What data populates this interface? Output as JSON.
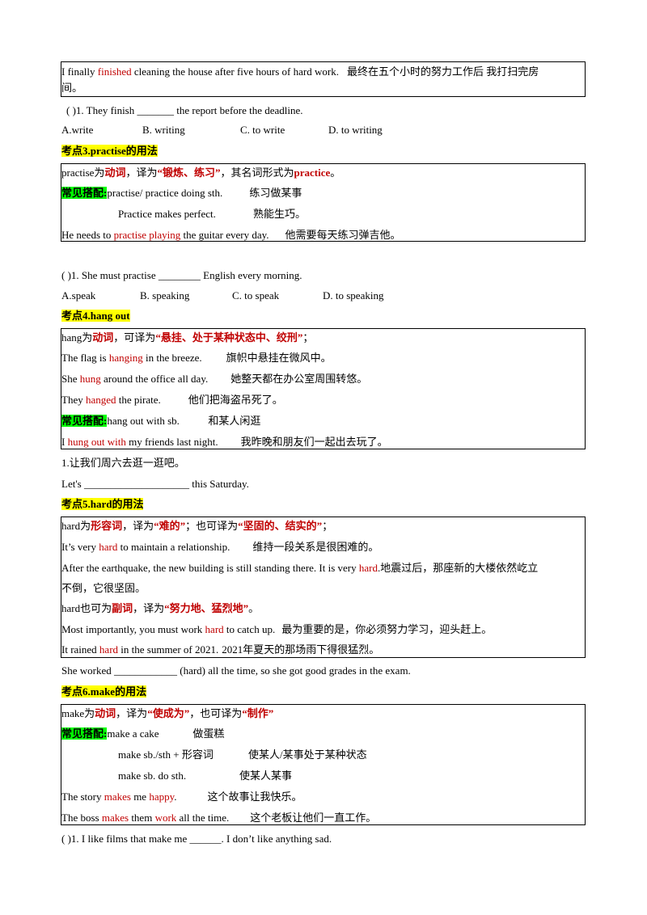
{
  "box1": {
    "line1_a": "I finally ",
    "line1_red": "finished",
    "line1_b": " cleaning the house after five hours of hard work.",
    "line1_cn": "最终在五个小时的努力工作后 我打扫完房",
    "line2_cn": "间。"
  },
  "q1": {
    "text_a": "(    )1. They finish ",
    "blank": "_______",
    "text_b": " the report before the deadline.",
    "options": [
      "A.write",
      "B. writing",
      "C. to write",
      "D. to writing"
    ]
  },
  "s3": {
    "heading": "考点3.practise的用法",
    "l1_a": "practise为",
    "l1_b": "动词",
    "l1_c": "，译为",
    "l1_d": "“锻炼、练习”",
    "l1_e": "，其名词形式为",
    "l1_f": "practice",
    "l1_g": "。",
    "l2_label": "常见搭配:",
    "l2_a": " practise/ practice doing sth.",
    "l2_cn": "练习做某事",
    "l3_a": "Practice makes perfect.",
    "l3_cn": "熟能生巧。",
    "l4_a": "He needs to ",
    "l4_red": "practise playing",
    "l4_b": " the guitar every day.",
    "l4_cn": "他需要每天练习弹吉他。"
  },
  "q2": {
    "text_a": "(     )1. She must practise ",
    "blank": "________",
    "text_b": " English every morning.",
    "options": [
      "A.speak",
      "B. speaking",
      "C. to speak",
      "D. to speaking"
    ]
  },
  "s4": {
    "heading": "考点4.hang out",
    "l1_a": "hang为",
    "l1_b": "动词",
    "l1_c": "，可译为",
    "l1_d": "“悬挂、处于某种状态中、绞刑”",
    "l1_e": "；",
    "l2_a": "The flag is ",
    "l2_red": "hanging",
    "l2_b": " in the breeze.",
    "l2_cn": "旗帜中悬挂在微风中。",
    "l3_a": "She ",
    "l3_red": "hung",
    "l3_b": " around the office all day.",
    "l3_cn": "她整天都在办公室周围转悠。",
    "l4_a": "They ",
    "l4_red": "hanged",
    "l4_b": " the pirate.",
    "l4_cn": "他们把海盗吊死了。",
    "l5_label": "常见搭配:",
    "l5_a": " hang out with sb.",
    "l5_cn": "和某人闲逛",
    "l6_a": "I ",
    "l6_red": "hung out with",
    "l6_b": " my friends last night.",
    "l6_cn": "我昨晚和朋友们一起出去玩了。",
    "ex_q": "1.让我们周六去逛一逛吧。",
    "ex_a": "Let's ",
    "ex_blank": "____________________",
    "ex_b": " this Saturday."
  },
  "s5": {
    "heading": "考点5.hard的用法",
    "l1_a": "hard为",
    "l1_b": "形容词",
    "l1_c": "，译为",
    "l1_d": "“难的”",
    "l1_e": "；也可译为",
    "l1_f": "“坚固的、结实的”",
    "l1_g": "；",
    "l2_a": "It’s very ",
    "l2_red": "hard",
    "l2_b": " to maintain a relationship.",
    "l2_cn": "维持一段关系是很困难的。",
    "l3_a": "After the earthquake, the new building is still standing there. It is very ",
    "l3_red": "hard",
    "l3_cn": ".地震过后，那座新的大楼依然屹立",
    "l4_cn": "不倒，它很坚固。",
    "l5_a": "hard也可为",
    "l5_b": "副词",
    "l5_c": "，译为",
    "l5_d": "“努力地、猛烈地”",
    "l5_e": "。",
    "l6_a": "Most importantly, you must work ",
    "l6_red": "hard",
    "l6_b": " to catch up.",
    "l6_cn": "最为重要的是，你必须努力学习，迎头赶上。",
    "l7_a": "It rained ",
    "l7_red": "hard",
    "l7_b": " in the summer of 2021.",
    "l7_cn": "2021年夏天的那场雨下得很猛烈。",
    "ex_a": "She worked ",
    "ex_blank": "____________",
    "ex_b": " (hard) all the time, so she got good grades in the exam."
  },
  "s6": {
    "heading": "考点6.make的用法",
    "l1_a": "make为",
    "l1_b": "动词",
    "l1_c": "，译为",
    "l1_d": "“使成为”",
    "l1_e": "，也可译为",
    "l1_f": "“制作”",
    "l2_label": "常见搭配:",
    "l2_a": " make a cake",
    "l2_cn": "做蛋糕",
    "l3_a": "make sb./sth + 形容词",
    "l3_cn": "使某人/某事处于某种状态",
    "l4_a": "make sb. do sth.",
    "l4_cn": "使某人某事",
    "l5_a": "The story ",
    "l5_red1": "makes",
    "l5_b": " me ",
    "l5_red2": "happy",
    "l5_c": ".",
    "l5_cn": "这个故事让我快乐。",
    "l6_a": "The boss ",
    "l6_red1": "makes",
    "l6_b": " them ",
    "l6_red2": "work",
    "l6_c": " all the time.",
    "l6_cn": "这个老板让他们一直工作。",
    "q_a": "(     )1. I like films that make me ",
    "q_blank": "______",
    "q_b": ". I don’t like anything sad."
  }
}
